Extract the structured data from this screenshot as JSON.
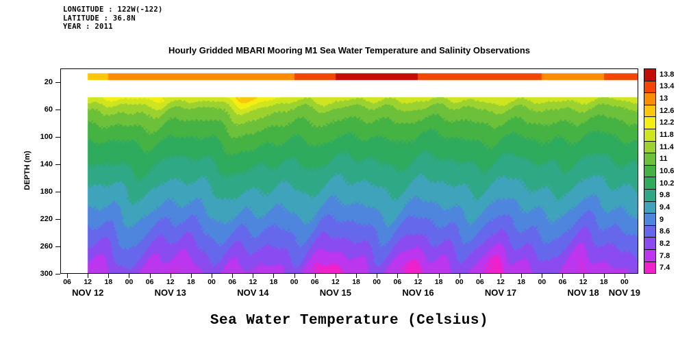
{
  "header": {
    "longitude": "LONGITUDE : 122W(-122)",
    "latitude": "LATITUDE : 36.8N",
    "year": "YEAR : 2011"
  },
  "chart_data": {
    "type": "heatmap",
    "title": "Hourly Gridded MBARI Mooring M1 Sea Water Temperature and Salinity Observations",
    "bottom_label": "Sea Water Temperature (Celsius)",
    "ylabel": "DEPTH (m)",
    "y_ticks": [
      20,
      60,
      100,
      140,
      180,
      220,
      260,
      300
    ],
    "depth_axis": {
      "min": 0,
      "max": 300
    },
    "time_axis": {
      "start_hour": 4,
      "end_hour": 172,
      "tick_start": 6,
      "tick_end": 168,
      "tick_step": 6,
      "tick_labels_cycle": [
        "06",
        "12",
        "18",
        "00"
      ]
    },
    "x_dates": [
      {
        "label": "NOV 12",
        "hour": 12
      },
      {
        "label": "NOV 13",
        "hour": 36
      },
      {
        "label": "NOV 14",
        "hour": 60
      },
      {
        "label": "NOV 15",
        "hour": 84
      },
      {
        "label": "NOV 16",
        "hour": 108
      },
      {
        "label": "NOV 17",
        "hour": 132
      },
      {
        "label": "NOV 18",
        "hour": 156
      },
      {
        "label": "NOV 19",
        "hour": 168
      }
    ],
    "colorbar": {
      "levels_top_to_bottom": [
        "13.8",
        "13.4",
        "13",
        "12.6",
        "12.2",
        "11.8",
        "11.4",
        "11",
        "10.6",
        "10.2",
        "9.8",
        "9.4",
        "9",
        "8.6",
        "8.2",
        "7.8",
        "7.4"
      ],
      "level_min": 7.4,
      "level_step": 0.4,
      "colors_top_to_bottom": [
        "#c30d04",
        "#f14702",
        "#fc8d03",
        "#fcc70a",
        "#f4ef12",
        "#cfe51f",
        "#9cd22f",
        "#6cc03a",
        "#45b244",
        "#2fab5e",
        "#2fa886",
        "#3fa3bb",
        "#4f86dd",
        "#6668ec",
        "#8a4cf0",
        "#bb36ee",
        "#ee22cc"
      ]
    },
    "surface_band": {
      "depth_top": 7,
      "depth_bottom": 17,
      "times": [
        12,
        24,
        36,
        48,
        60,
        72,
        84,
        96,
        108,
        120,
        132,
        144,
        156,
        168
      ],
      "values": [
        12.6,
        13.0,
        13.0,
        13.2,
        13.0,
        13.2,
        13.6,
        13.8,
        13.6,
        13.2,
        13.4,
        13.2,
        13.0,
        13.4
      ]
    },
    "field": {
      "time_start": 12,
      "depth_start": 42,
      "times": [
        12,
        24,
        36,
        48,
        60,
        72,
        84,
        96,
        108,
        120,
        132,
        144,
        156,
        168
      ],
      "depths": [
        40,
        60,
        80,
        100,
        120,
        140,
        160,
        180,
        200,
        220,
        240,
        260,
        280,
        300
      ],
      "values": [
        [
          12.0,
          12.5,
          11.9,
          12.1,
          12.6,
          12.0,
          11.8,
          12.0,
          11.7,
          12.0,
          11.8,
          12.1,
          11.7,
          12.0
        ],
        [
          11.2,
          11.5,
          11.1,
          11.2,
          11.6,
          11.2,
          11.0,
          11.2,
          11.0,
          11.2,
          11.1,
          11.3,
          11.0,
          11.2
        ],
        [
          10.8,
          11.0,
          10.7,
          10.8,
          11.1,
          10.8,
          10.7,
          10.8,
          10.6,
          10.8,
          10.7,
          10.9,
          10.6,
          10.8
        ],
        [
          10.5,
          10.6,
          10.4,
          10.5,
          10.7,
          10.5,
          10.4,
          10.5,
          10.3,
          10.5,
          10.4,
          10.5,
          10.3,
          10.5
        ],
        [
          10.2,
          10.3,
          10.1,
          10.2,
          10.4,
          10.2,
          10.1,
          10.2,
          10.1,
          10.2,
          10.1,
          10.3,
          10.1,
          10.2
        ],
        [
          10.0,
          10.1,
          9.9,
          10.0,
          10.1,
          10.0,
          9.9,
          10.0,
          9.9,
          10.0,
          9.9,
          10.0,
          9.9,
          10.0
        ],
        [
          9.8,
          9.9,
          9.7,
          9.8,
          9.9,
          9.8,
          9.7,
          9.8,
          9.7,
          9.8,
          9.7,
          9.8,
          9.7,
          9.8
        ],
        [
          9.5,
          9.6,
          9.4,
          9.5,
          9.7,
          9.5,
          9.4,
          9.5,
          9.4,
          9.5,
          9.4,
          9.6,
          9.4,
          9.5
        ],
        [
          9.3,
          9.4,
          9.2,
          9.3,
          9.4,
          9.3,
          9.2,
          9.3,
          9.2,
          9.3,
          9.2,
          9.3,
          9.2,
          9.3
        ],
        [
          9.0,
          9.1,
          8.9,
          9.0,
          9.2,
          9.0,
          8.9,
          9.0,
          8.9,
          9.0,
          8.9,
          9.1,
          8.9,
          9.0
        ],
        [
          8.7,
          8.9,
          8.6,
          8.7,
          8.9,
          8.7,
          8.6,
          8.7,
          8.6,
          8.7,
          8.6,
          8.8,
          8.6,
          8.7
        ],
        [
          8.4,
          8.6,
          8.3,
          8.4,
          8.6,
          8.4,
          8.3,
          8.4,
          8.3,
          8.4,
          8.3,
          8.5,
          8.3,
          8.4
        ],
        [
          8.1,
          8.3,
          8.0,
          8.1,
          8.3,
          8.1,
          7.9,
          8.1,
          7.9,
          8.1,
          7.9,
          8.2,
          8.0,
          8.1
        ],
        [
          7.8,
          8.0,
          7.6,
          7.8,
          8.0,
          7.7,
          7.5,
          7.8,
          7.5,
          7.8,
          7.5,
          7.9,
          7.6,
          7.8
        ]
      ]
    },
    "texture": {
      "periods_h": [
        12.42,
        24,
        7.7
      ],
      "weights": [
        0.7,
        0.9,
        0.4
      ],
      "base_amp_m": 2.5,
      "amp_per_m": 0.045,
      "noise_amp_c": 0.05
    }
  }
}
